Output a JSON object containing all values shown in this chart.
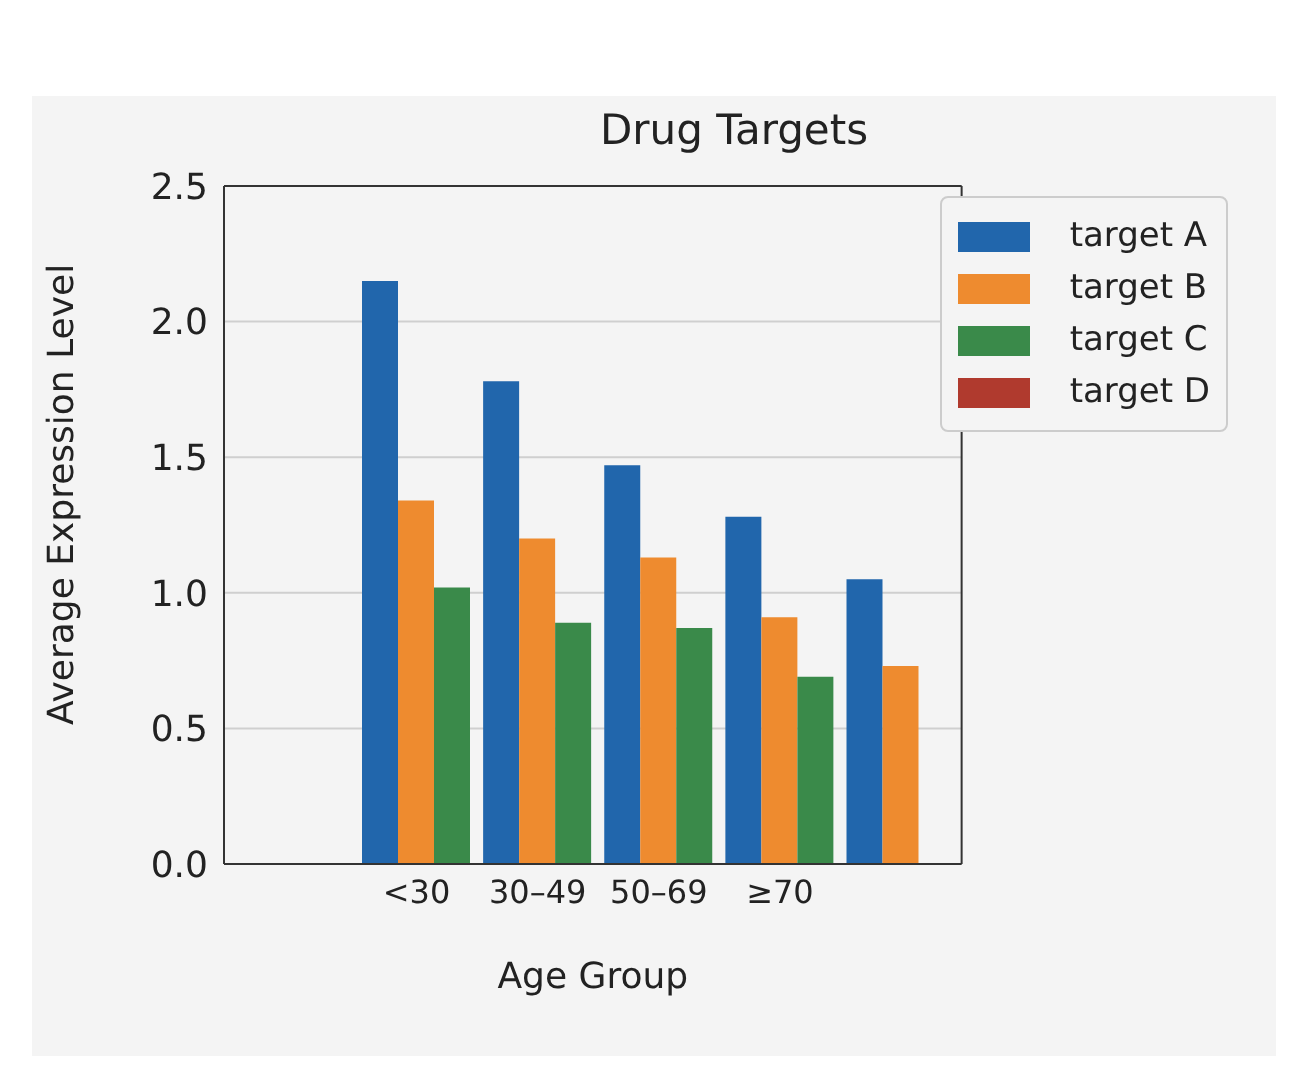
{
  "chart_data": {
    "type": "bar",
    "title": "Drug Targets",
    "xlabel": "Age Group",
    "ylabel": "Average Expression Level",
    "categories": [
      "<30",
      "30–49",
      "50–69",
      "≥70",
      null
    ],
    "series": [
      {
        "name": "target A",
        "color": "#2166ac",
        "values": [
          2.15,
          1.78,
          1.47,
          1.28,
          1.05
        ]
      },
      {
        "name": "target B",
        "color": "#ee8b2f",
        "values": [
          1.34,
          1.2,
          1.13,
          0.91,
          0.73
        ]
      },
      {
        "name": "target C",
        "color": "#3a8a4a",
        "values": [
          1.02,
          0.89,
          0.87,
          0.69,
          null
        ]
      },
      {
        "name": "target D",
        "color": "#b03a2e",
        "values": [
          null,
          null,
          null,
          null,
          null
        ]
      }
    ],
    "ylim": [
      0,
      2.5
    ],
    "yticks": [
      {
        "value": 0,
        "label": "0.0"
      },
      0.5,
      {
        "value": 1,
        "label": "1.0"
      },
      1.5,
      {
        "value": 2,
        "label": "2.0"
      },
      2.5
    ],
    "grid": "y",
    "legend": "top right"
  }
}
